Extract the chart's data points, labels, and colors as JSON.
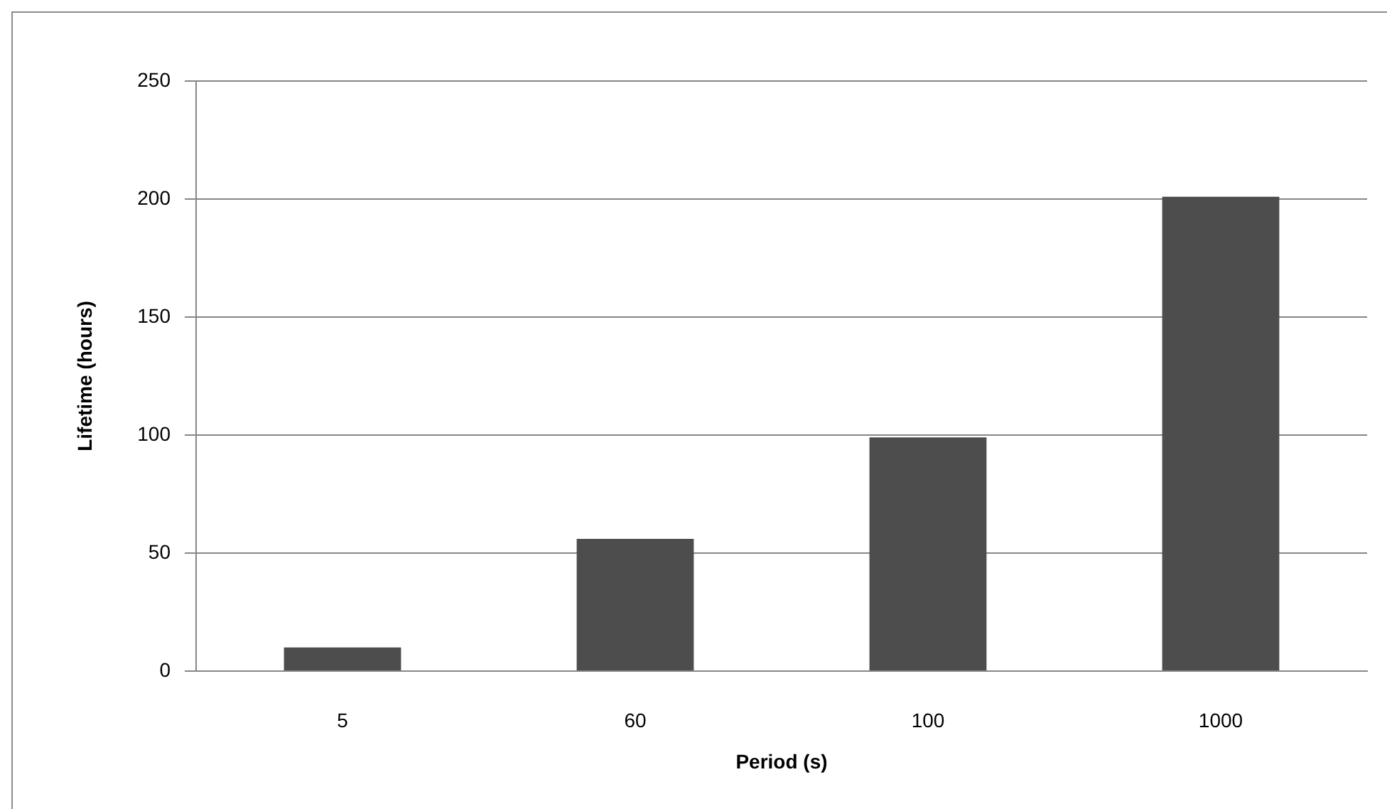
{
  "chart_data": {
    "type": "bar",
    "xlabel": "Period (s)",
    "ylabel": "Lifetime (hours)",
    "categories": [
      "5",
      "60",
      "100",
      "1000"
    ],
    "values": [
      10,
      56,
      99,
      201
    ],
    "color": "#4d4d4d",
    "ylim": [
      0,
      250
    ],
    "yticks": [
      0,
      50,
      100,
      150,
      200,
      250
    ],
    "grid": "y",
    "legend": false
  }
}
